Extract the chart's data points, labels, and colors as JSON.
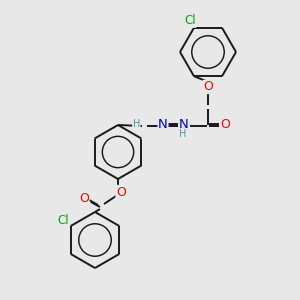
{
  "bg_color": "#e8e8e8",
  "bond_color": "#1a1a1a",
  "atom_colors": {
    "O": "#ff0000",
    "N": "#0000cd",
    "Cl": "#00aa00",
    "H": "#4a9a9a",
    "C": "#1a1a1a"
  },
  "font_size": 8.0,
  "figsize": [
    3.0,
    3.0
  ],
  "dpi": 100,
  "ring_r": 26,
  "lw": 1.4
}
